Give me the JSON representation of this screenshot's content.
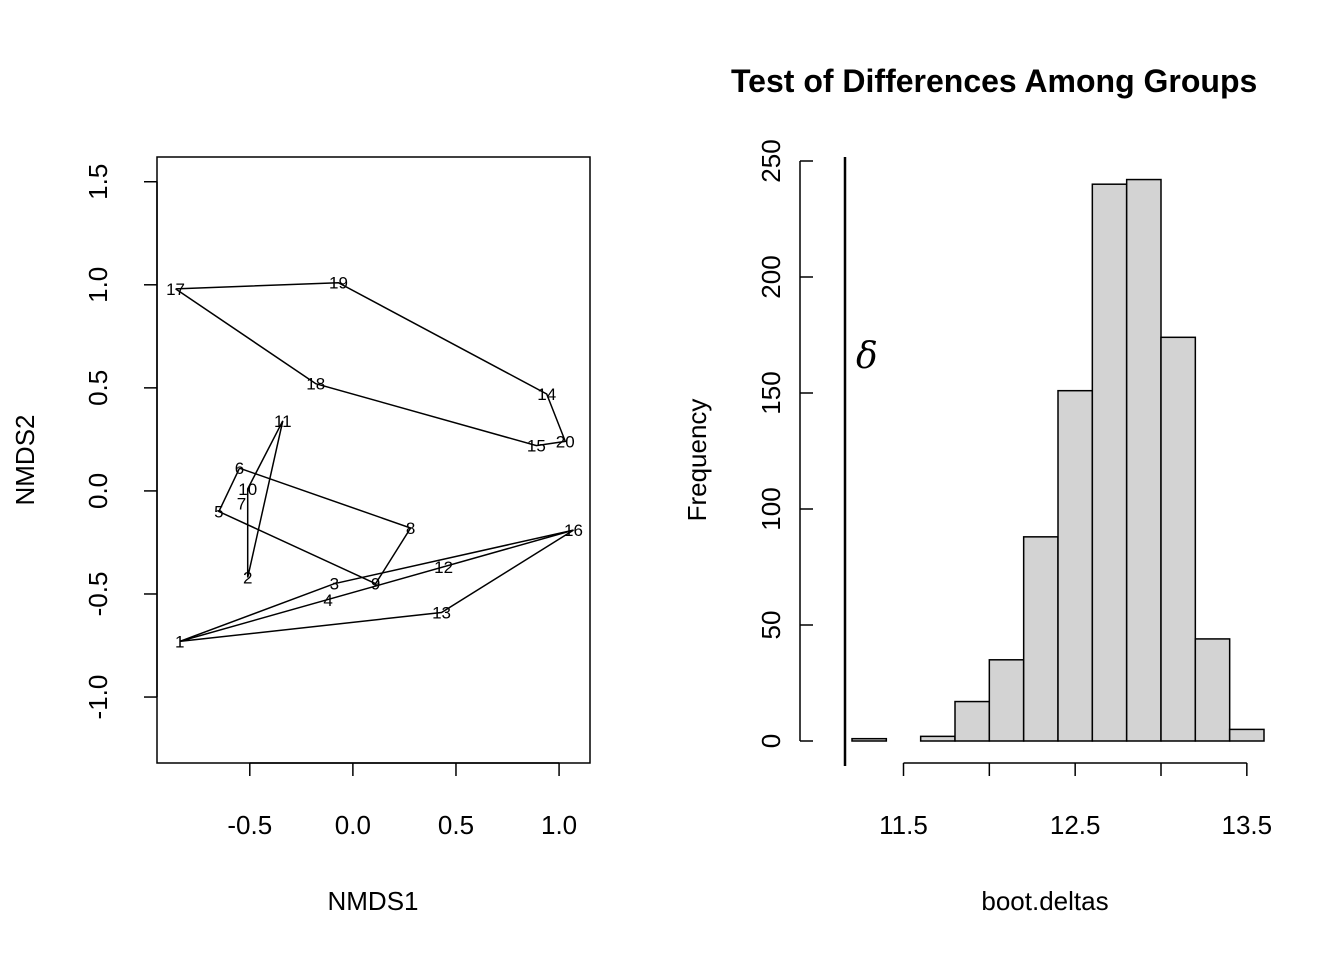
{
  "chart_data": [
    {
      "type": "scatter",
      "title": "",
      "xlabel": "NMDS1",
      "ylabel": "NMDS2",
      "xlim": [
        -0.95,
        1.15
      ],
      "ylim": [
        -1.32,
        1.62
      ],
      "xticks": [
        "-0.5",
        "0.0",
        "0.5",
        "1.0"
      ],
      "yticks": [
        "-1.0",
        "-0.5",
        "0.0",
        "0.5",
        "1.0",
        "1.5"
      ],
      "points": [
        {
          "label": "1",
          "x": -0.84,
          "y": -0.73
        },
        {
          "label": "2",
          "x": -0.51,
          "y": -0.42
        },
        {
          "label": "3",
          "x": -0.09,
          "y": -0.45
        },
        {
          "label": "4",
          "x": -0.12,
          "y": -0.53
        },
        {
          "label": "5",
          "x": -0.65,
          "y": -0.1
        },
        {
          "label": "6",
          "x": -0.55,
          "y": 0.11
        },
        {
          "label": "7",
          "x": -0.54,
          "y": -0.06
        },
        {
          "label": "8",
          "x": 0.28,
          "y": -0.18
        },
        {
          "label": "9",
          "x": 0.11,
          "y": -0.45
        },
        {
          "label": "10",
          "x": -0.51,
          "y": 0.01
        },
        {
          "label": "11",
          "x": -0.34,
          "y": 0.34
        },
        {
          "label": "12",
          "x": 0.44,
          "y": -0.37
        },
        {
          "label": "13",
          "x": 0.43,
          "y": -0.59
        },
        {
          "label": "14",
          "x": 0.94,
          "y": 0.47
        },
        {
          "label": "15",
          "x": 0.89,
          "y": 0.22
        },
        {
          "label": "16",
          "x": 1.07,
          "y": -0.19
        },
        {
          "label": "17",
          "x": -0.86,
          "y": 0.98
        },
        {
          "label": "18",
          "x": -0.18,
          "y": 0.52
        },
        {
          "label": "19",
          "x": -0.07,
          "y": 1.01
        },
        {
          "label": "20",
          "x": 1.03,
          "y": 0.24
        }
      ],
      "hulls": [
        [
          "17",
          "19",
          "14",
          "20",
          "15",
          "18",
          "17"
        ],
        [
          "6",
          "8",
          "9",
          "5",
          "6"
        ],
        [
          "11",
          "2",
          "10",
          "11"
        ],
        [
          "1",
          "16",
          "13",
          "1"
        ],
        [
          "1",
          "3",
          "16"
        ]
      ]
    },
    {
      "type": "bar",
      "subtype": "histogram",
      "title": "Test of Differences Among Groups",
      "xlabel": "boot.deltas",
      "ylabel": "Frequency",
      "xlim": [
        11.2,
        13.6
      ],
      "ylim": [
        0,
        250
      ],
      "xticks": [
        "11.5",
        "12.5",
        "13.5"
      ],
      "yticks": [
        "0",
        "50",
        "100",
        "150",
        "200",
        "250"
      ],
      "bins": [
        {
          "from": 11.2,
          "to": 11.4,
          "count": 1
        },
        {
          "from": 11.4,
          "to": 11.6,
          "count": 0
        },
        {
          "from": 11.6,
          "to": 11.8,
          "count": 2
        },
        {
          "from": 11.8,
          "to": 12.0,
          "count": 17
        },
        {
          "from": 12.0,
          "to": 12.2,
          "count": 35
        },
        {
          "from": 12.2,
          "to": 12.4,
          "count": 88
        },
        {
          "from": 12.4,
          "to": 12.6,
          "count": 151
        },
        {
          "from": 12.6,
          "to": 12.8,
          "count": 240
        },
        {
          "from": 12.8,
          "to": 13.0,
          "count": 242
        },
        {
          "from": 13.0,
          "to": 13.2,
          "count": 174
        },
        {
          "from": 13.2,
          "to": 13.4,
          "count": 44
        },
        {
          "from": 13.4,
          "to": 13.6,
          "count": 5
        }
      ],
      "observed_line": {
        "label": "δ",
        "x": 11.2
      }
    }
  ]
}
